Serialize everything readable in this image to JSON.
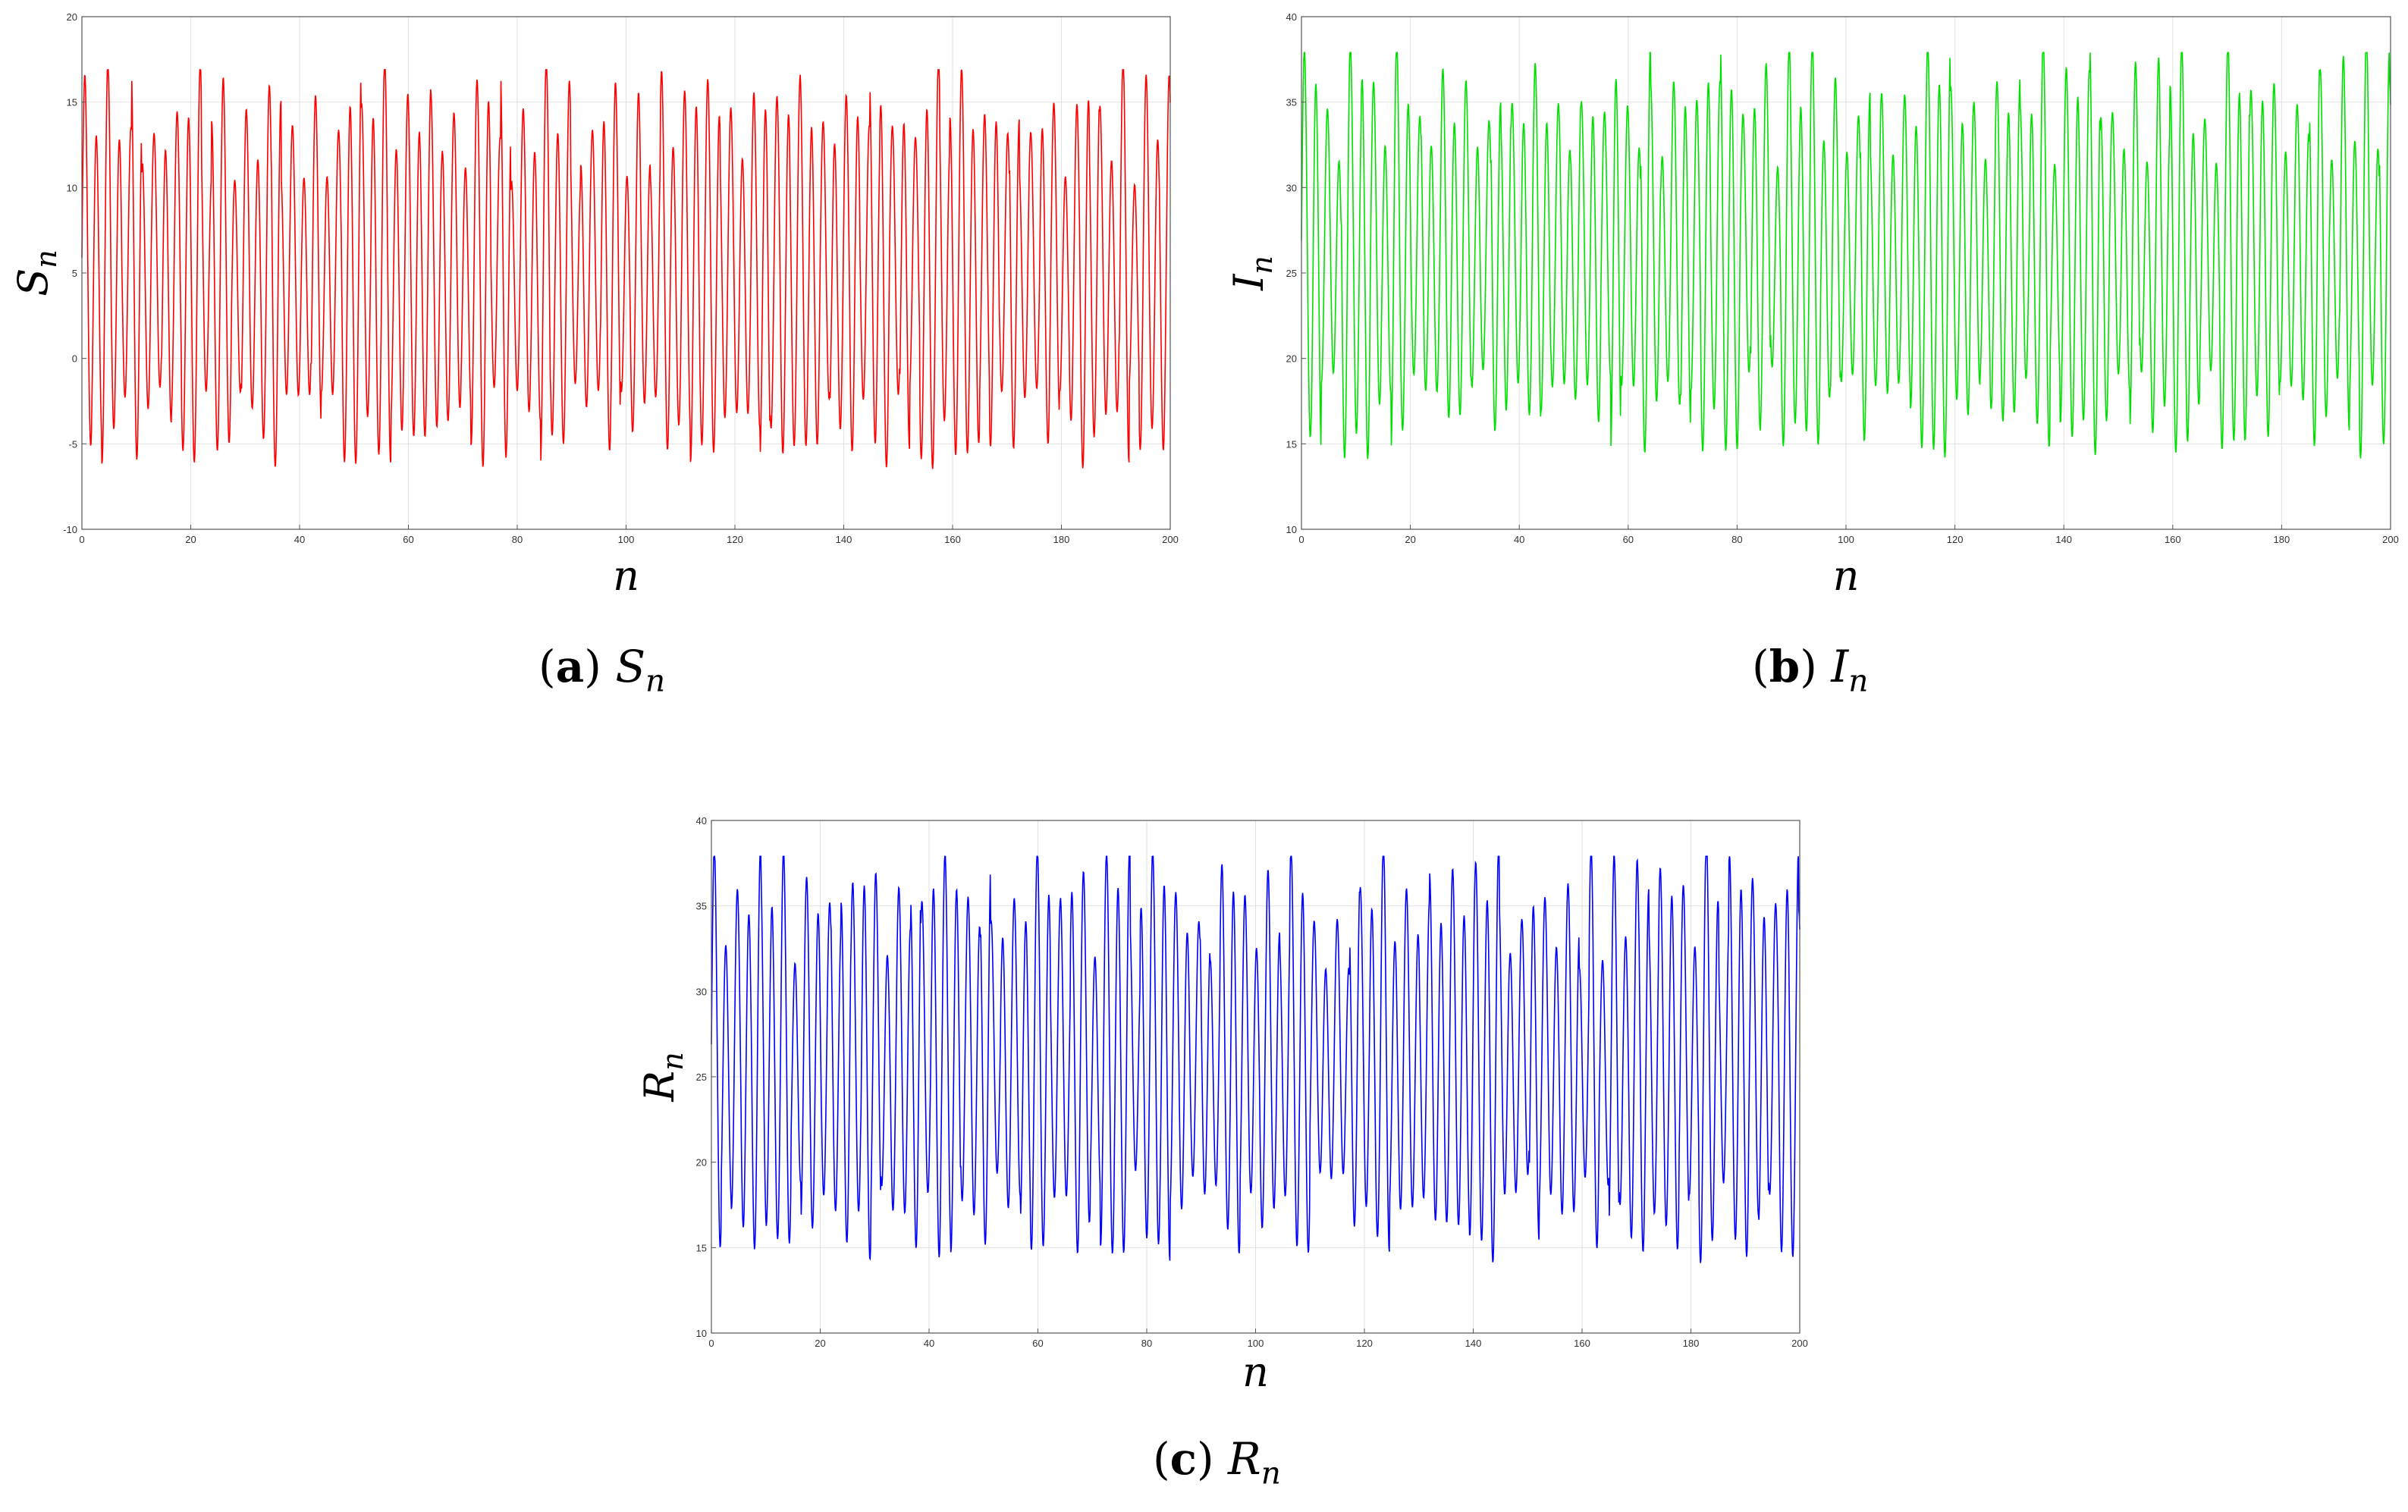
{
  "chart_data": [
    {
      "type": "line",
      "caption": {
        "tag_open": "(",
        "tag": "a",
        "tag_close": ")",
        "var": "S",
        "sub": "n"
      },
      "xlabel": "n",
      "ylabel": {
        "main": "S",
        "sub": "n"
      },
      "xlim": [
        0,
        200
      ],
      "ylim": [
        -10,
        20
      ],
      "xticks": [
        "0",
        "20",
        "40",
        "60",
        "80",
        "100",
        "120",
        "140",
        "160",
        "180",
        "200"
      ],
      "yticks": [
        "-10",
        "-5",
        "0",
        "5",
        "10",
        "15",
        "20"
      ],
      "grid": true,
      "series": [
        {
          "color": "#ff0000",
          "period": 2.12,
          "center": 5.0,
          "amp_min": 3.8,
          "amp_max": 11.6,
          "y_min": -6.9,
          "y_max": 16.9
        }
      ]
    },
    {
      "type": "line",
      "caption": {
        "tag_open": "(",
        "tag": "b",
        "tag_close": ")",
        "var": "I",
        "sub": "n"
      },
      "xlabel": "n",
      "ylabel": {
        "main": "I",
        "sub": "n"
      },
      "xlim": [
        0,
        200
      ],
      "ylim": [
        10,
        40
      ],
      "xticks": [
        "0",
        "20",
        "40",
        "60",
        "80",
        "100",
        "120",
        "140",
        "160",
        "180",
        "200"
      ],
      "yticks": [
        "10",
        "15",
        "20",
        "25",
        "30",
        "35",
        "40"
      ],
      "grid": true,
      "series": [
        {
          "color": "#00e000",
          "period": 2.12,
          "center": 26.0,
          "amp_min": 3.6,
          "amp_max": 11.8,
          "y_min": 13.8,
          "y_max": 37.9
        }
      ]
    },
    {
      "type": "line",
      "caption": {
        "tag_open": "(",
        "tag": "c",
        "tag_close": ")",
        "var": "R",
        "sub": "n"
      },
      "xlabel": "n",
      "ylabel": {
        "main": "R",
        "sub": "n"
      },
      "xlim": [
        0,
        200
      ],
      "ylim": [
        10,
        40
      ],
      "xticks": [
        "0",
        "20",
        "40",
        "60",
        "80",
        "100",
        "120",
        "140",
        "160",
        "180",
        "200"
      ],
      "yticks": [
        "10",
        "15",
        "20",
        "25",
        "30",
        "35",
        "40"
      ],
      "grid": true,
      "series": [
        {
          "color": "#0000ff",
          "period": 2.12,
          "center": 26.0,
          "amp_min": 3.6,
          "amp_max": 11.8,
          "y_min": 13.8,
          "y_max": 37.9
        }
      ]
    }
  ]
}
